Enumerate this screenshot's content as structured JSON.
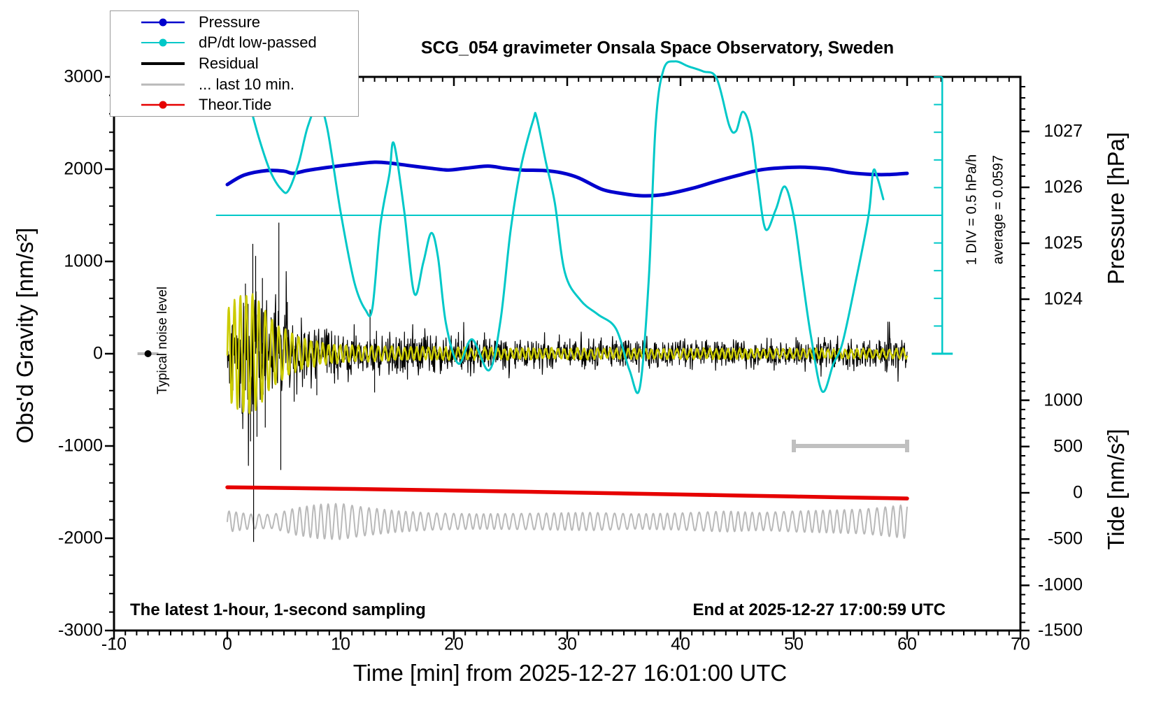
{
  "title": "SCG_054 gravimeter Onsala Space Observatory, Sweden",
  "footer": {
    "left": "The latest 1-hour, 1-second sampling",
    "right": "End at 2025-12-27 17:00:59 UTC"
  },
  "annotations": {
    "div_scale": "1 DIV = 0.5 hPa/h",
    "average_label": "average = 0.0597",
    "average_value": 0.0597,
    "noise_label": "Typical noise level"
  },
  "legend": {
    "items": [
      {
        "label": "Pressure",
        "color": "#0000cd",
        "marker": true,
        "width": 2.5
      },
      {
        "label": "dP/dt low-passed",
        "color": "#00c8c8",
        "marker": true,
        "width": 2
      },
      {
        "label": "Residual",
        "color": "#000000",
        "marker": false,
        "width": 4
      },
      {
        "label": "... last 10 min.",
        "color": "#b9b9b9",
        "marker": false,
        "width": 3
      },
      {
        "label": "Theor.Tide",
        "color": "#e60000",
        "marker": true,
        "width": 2.5
      }
    ]
  },
  "axes": {
    "x": {
      "label": "Time [min] from 2025-12-27 16:01:00 UTC",
      "min": -10,
      "max": 70,
      "ticks": [
        -10,
        0,
        10,
        20,
        30,
        40,
        50,
        60,
        70
      ],
      "minor_step": 1
    },
    "gravity": {
      "label": "Obs'd Gravity [nm/s²]",
      "min": -3000,
      "max": 3000,
      "ticks": [
        3000,
        2000,
        1000,
        0,
        -1000,
        -2000,
        -3000
      ],
      "minor_step": 200
    },
    "pressure": {
      "label": "Pressure [hPa]",
      "ticks": [
        1027,
        1026,
        1025,
        1024
      ],
      "minor_step": 0.2
    },
    "tide": {
      "label": "Tide [nm/s²]",
      "ticks": [
        1000,
        500,
        0,
        -500,
        -1000,
        -1500
      ],
      "minor_step": 100
    },
    "dpdt": {
      "average": 0.0597,
      "div_value_hpa_per_h": 0.5,
      "divisions": 10
    }
  },
  "chart_data": {
    "type": "line",
    "x_unit": "minutes",
    "series": [
      {
        "name": "Pressure",
        "axis": "pressure",
        "color": "#0000cd",
        "width": 5,
        "points": [
          [
            0,
            1026.05
          ],
          [
            1.5,
            1026.22
          ],
          [
            3.5,
            1026.3
          ],
          [
            5,
            1026.29
          ],
          [
            5.8,
            1026.25
          ],
          [
            7,
            1026.3
          ],
          [
            9,
            1026.36
          ],
          [
            11,
            1026.41
          ],
          [
            13,
            1026.45
          ],
          [
            14.5,
            1026.43
          ],
          [
            16,
            1026.39
          ],
          [
            18,
            1026.34
          ],
          [
            19.5,
            1026.31
          ],
          [
            21,
            1026.34
          ],
          [
            23,
            1026.38
          ],
          [
            24.5,
            1026.34
          ],
          [
            26,
            1026.31
          ],
          [
            28,
            1026.3
          ],
          [
            29.5,
            1026.26
          ],
          [
            31,
            1026.17
          ],
          [
            33,
            1025.97
          ],
          [
            34.5,
            1025.9
          ],
          [
            36.5,
            1025.85
          ],
          [
            38.5,
            1025.87
          ],
          [
            41,
            1025.98
          ],
          [
            43,
            1026.1
          ],
          [
            45,
            1026.21
          ],
          [
            47,
            1026.31
          ],
          [
            49,
            1026.35
          ],
          [
            51,
            1026.36
          ],
          [
            53,
            1026.33
          ],
          [
            55,
            1026.26
          ],
          [
            57,
            1026.23
          ],
          [
            58.5,
            1026.23
          ],
          [
            60,
            1026.25
          ]
        ]
      },
      {
        "name": "dP/dt low-passed",
        "axis": "dpdt",
        "color": "#00c8c8",
        "width": 3,
        "points": [
          [
            0.9,
            2.88
          ],
          [
            1.8,
            2.2
          ],
          [
            2.8,
            1.45
          ],
          [
            3.8,
            0.85
          ],
          [
            4.8,
            0.52
          ],
          [
            5.4,
            0.51
          ],
          [
            6.3,
            1.0
          ],
          [
            7.1,
            1.66
          ],
          [
            8.0,
            2.05
          ],
          [
            8.8,
            1.65
          ],
          [
            10.0,
            0.12
          ],
          [
            11.2,
            -1.14
          ],
          [
            12.2,
            -1.65
          ],
          [
            12.8,
            -1.62
          ],
          [
            13.5,
            -0.13
          ],
          [
            14.3,
            0.8
          ],
          [
            14.7,
            1.36
          ],
          [
            15.6,
            0.16
          ],
          [
            16.5,
            -1.35
          ],
          [
            17.3,
            -0.79
          ],
          [
            18.0,
            -0.26
          ],
          [
            18.6,
            -0.7
          ],
          [
            19.3,
            -1.9
          ],
          [
            20.4,
            -2.62
          ],
          [
            21.6,
            -2.18
          ],
          [
            23.1,
            -2.74
          ],
          [
            24.1,
            -1.86
          ],
          [
            25.0,
            -0.22
          ],
          [
            25.9,
            0.92
          ],
          [
            27.0,
            1.78
          ],
          [
            27.3,
            1.83
          ],
          [
            28.1,
            1.04
          ],
          [
            28.9,
            0.29
          ],
          [
            29.8,
            -0.98
          ],
          [
            31.2,
            -1.48
          ],
          [
            32.7,
            -1.73
          ],
          [
            34.3,
            -1.99
          ],
          [
            35.5,
            -2.74
          ],
          [
            36.4,
            -3.06
          ],
          [
            37.2,
            -1.1
          ],
          [
            37.8,
            1.68
          ],
          [
            38.5,
            2.69
          ],
          [
            39.5,
            2.84
          ],
          [
            40.7,
            2.75
          ],
          [
            42.0,
            2.66
          ],
          [
            43.2,
            2.53
          ],
          [
            44.3,
            1.68
          ],
          [
            44.9,
            1.58
          ],
          [
            45.5,
            1.93
          ],
          [
            46.2,
            1.59
          ],
          [
            46.8,
            0.7
          ],
          [
            47.5,
            -0.19
          ],
          [
            48.4,
            0.16
          ],
          [
            49.2,
            0.58
          ],
          [
            50.0,
            0.03
          ],
          [
            50.7,
            -0.98
          ],
          [
            51.5,
            -2.11
          ],
          [
            52.5,
            -3.12
          ],
          [
            53.5,
            -2.62
          ],
          [
            54.3,
            -2.24
          ],
          [
            55.5,
            -1.1
          ],
          [
            56.6,
            0.06
          ],
          [
            57.0,
            0.85
          ],
          [
            57.4,
            0.72
          ],
          [
            57.9,
            0.35
          ]
        ]
      },
      {
        "name": "Residual",
        "axis": "gravity",
        "color": "#000000",
        "width": 1.2,
        "noise": {
          "center": 0,
          "samples_per_min": 30,
          "seed": 42,
          "envelope": [
            [
              0,
              420
            ],
            [
              0.7,
              650
            ],
            [
              1.5,
              900
            ],
            [
              2.3,
              1150
            ],
            [
              2.8,
              850
            ],
            [
              3.5,
              650
            ],
            [
              4.4,
              800
            ],
            [
              4.8,
              900
            ],
            [
              5.5,
              600
            ],
            [
              6.5,
              480
            ],
            [
              8,
              430
            ],
            [
              10,
              390
            ],
            [
              12,
              340
            ],
            [
              15,
              310
            ],
            [
              18,
              280
            ],
            [
              21,
              265
            ],
            [
              25,
              245
            ],
            [
              30,
              235
            ],
            [
              35,
              225
            ],
            [
              40,
              220
            ],
            [
              45,
              220
            ],
            [
              50,
              210
            ],
            [
              55,
              215
            ],
            [
              60,
              245
            ]
          ],
          "spikes": [
            [
              2.25,
              1190
            ],
            [
              2.32,
              -2040
            ],
            [
              2.05,
              -950
            ],
            [
              2.5,
              1060
            ],
            [
              2.62,
              -900
            ],
            [
              3.1,
              820
            ],
            [
              3.35,
              -800
            ],
            [
              4.55,
              1420
            ],
            [
              4.72,
              -1260
            ],
            [
              1.6,
              760
            ],
            [
              1.3,
              -650
            ],
            [
              5.3,
              560
            ],
            [
              5.9,
              -520
            ],
            [
              7.9,
              -450
            ],
            [
              12.6,
              480
            ],
            [
              13.0,
              -420
            ]
          ]
        }
      },
      {
        "name": "Residual low-passed",
        "axis": "gravity",
        "color": "#cbcb00",
        "width": 2.5,
        "oscillation": {
          "center": 0,
          "period_min": 0.55,
          "envelope": [
            [
              0,
              480
            ],
            [
              0.8,
              600
            ],
            [
              1.5,
              640
            ],
            [
              2.3,
              650
            ],
            [
              3,
              520
            ],
            [
              3.8,
              380
            ],
            [
              4.6,
              300
            ],
            [
              5.5,
              230
            ],
            [
              7,
              150
            ],
            [
              9,
              100
            ],
            [
              12,
              80
            ],
            [
              16,
              65
            ],
            [
              22,
              58
            ],
            [
              30,
              52
            ],
            [
              40,
              50
            ],
            [
              50,
              48
            ],
            [
              60,
              45
            ]
          ]
        }
      },
      {
        "name": "... last 10 min.",
        "axis": "tide",
        "color": "#b9b9b9",
        "width": 2,
        "oscillation": {
          "center": -310,
          "period_min": 0.68,
          "envelope": [
            [
              0,
              115
            ],
            [
              2,
              80
            ],
            [
              4,
              75
            ],
            [
              6,
              145
            ],
            [
              8,
              185
            ],
            [
              10,
              195
            ],
            [
              12,
              155
            ],
            [
              15,
              115
            ],
            [
              18,
              92
            ],
            [
              22,
              82
            ],
            [
              27,
              88
            ],
            [
              32,
              98
            ],
            [
              36,
              82
            ],
            [
              40,
              92
            ],
            [
              44,
              112
            ],
            [
              47,
              96
            ],
            [
              50,
              112
            ],
            [
              53,
              122
            ],
            [
              56,
              132
            ],
            [
              58,
              155
            ],
            [
              60,
              185
            ]
          ]
        }
      },
      {
        "name": "Theor.Tide",
        "axis": "tide",
        "color": "#e60000",
        "width": 5.5,
        "points": [
          [
            0,
            60
          ],
          [
            10,
            44
          ],
          [
            20,
            25
          ],
          [
            30,
            4
          ],
          [
            40,
            -18
          ],
          [
            50,
            -40
          ],
          [
            60,
            -61
          ]
        ]
      }
    ],
    "markers": {
      "average_line": {
        "axis": "dpdt",
        "value": 0.0597,
        "t_start": -1,
        "t_end": 63.1,
        "color": "#00c8c8"
      },
      "scale_bar": {
        "t": 63.1,
        "divisions": 10,
        "color": "#00c8c8"
      },
      "last10_bar": {
        "t_start": 50,
        "t_end": 60,
        "gravity": -1000,
        "color": "#c0c0c0"
      },
      "noise_dot": {
        "t": -7,
        "gravity": 0
      }
    }
  }
}
